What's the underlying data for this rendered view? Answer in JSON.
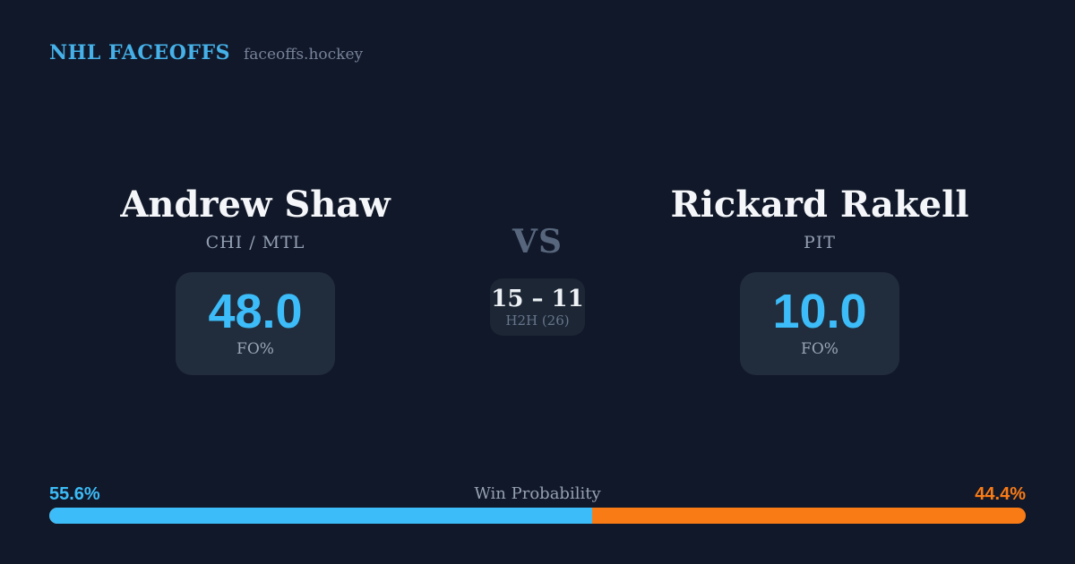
{
  "header": {
    "brand": "NHL FACEOFFS",
    "domain": "faceoffs.hockey"
  },
  "matchup": {
    "vs_label": "VS",
    "h2h": {
      "score": "15 – 11",
      "label": "H2H (26)"
    },
    "players": [
      {
        "name": "Andrew Shaw",
        "team": "CHI / MTL",
        "stat_value": "48.0",
        "stat_label": "FO%"
      },
      {
        "name": "Rickard Rakell",
        "team": "PIT",
        "stat_value": "10.0",
        "stat_label": "FO%"
      }
    ]
  },
  "win_probability": {
    "title": "Win Probability",
    "left_pct_label": "55.6%",
    "right_pct_label": "44.4%",
    "left_value": 55.6,
    "right_value": 44.4
  },
  "colors": {
    "background": "#111829",
    "card": "#212c3c",
    "h2h_box": "#1c2634",
    "brand_blue": "#45b1e8",
    "accent_blue": "#3cbcf8",
    "accent_orange": "#f97b16"
  }
}
